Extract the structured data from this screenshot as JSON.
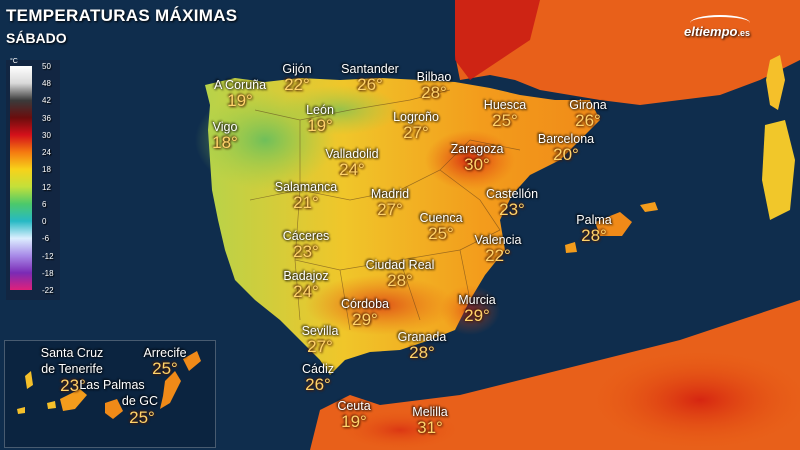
{
  "title": "TEMPERATURAS MÁXIMAS",
  "subtitle": "SÁBADO",
  "brand": "eltiempo",
  "brand_suffix": ".es",
  "legend": {
    "unit": "°C",
    "values": [
      "50",
      "48",
      "42",
      "36",
      "30",
      "24",
      "18",
      "12",
      "6",
      "0",
      "-6",
      "-12",
      "-18",
      "-22"
    ],
    "colors": [
      "#ffffff",
      "#d9d9d9",
      "#3a3a3a",
      "#6b0d0d",
      "#d4101a",
      "#f57a10",
      "#f7d21a",
      "#c4e03a",
      "#4cc96a",
      "#26b9c4",
      "#dcefff",
      "#a88be8",
      "#7a2bb5",
      "#e0207a"
    ]
  },
  "cities": [
    {
      "name": "A Coruña",
      "temp": "19°"
    },
    {
      "name": "Gijón",
      "temp": "22°"
    },
    {
      "name": "Santander",
      "temp": "26°"
    },
    {
      "name": "Bilbao",
      "temp": "28°"
    },
    {
      "name": "Vigo",
      "temp": "18°"
    },
    {
      "name": "León",
      "temp": "19°"
    },
    {
      "name": "Logroño",
      "temp": "27°"
    },
    {
      "name": "Huesca",
      "temp": "25°"
    },
    {
      "name": "Girona",
      "temp": "26°"
    },
    {
      "name": "Valladolid",
      "temp": "24°"
    },
    {
      "name": "Zaragoza",
      "temp": "30°"
    },
    {
      "name": "Barcelona",
      "temp": "20°"
    },
    {
      "name": "Salamanca",
      "temp": "21°"
    },
    {
      "name": "Madrid",
      "temp": "27°"
    },
    {
      "name": "Castellón",
      "temp": "23°"
    },
    {
      "name": "Cáceres",
      "temp": "23°"
    },
    {
      "name": "Cuenca",
      "temp": "25°"
    },
    {
      "name": "Palma",
      "temp": "28°"
    },
    {
      "name": "Valencia",
      "temp": "22°"
    },
    {
      "name": "Badajoz",
      "temp": "24°"
    },
    {
      "name": "Ciudad Real",
      "temp": "28°"
    },
    {
      "name": "Córdoba",
      "temp": "29°"
    },
    {
      "name": "Murcia",
      "temp": "29°"
    },
    {
      "name": "Sevilla",
      "temp": "27°"
    },
    {
      "name": "Granada",
      "temp": "28°"
    },
    {
      "name": "Cádiz",
      "temp": "26°"
    },
    {
      "name": "Ceuta",
      "temp": "19°"
    },
    {
      "name": "Melilla",
      "temp": "31°"
    }
  ],
  "canarias": [
    {
      "name": "Santa Cruz de Tenerife",
      "line1": "Santa Cruz",
      "line2": "de Tenerife",
      "temp": "23°"
    },
    {
      "name": "Arrecife",
      "line1": "Arrecife",
      "line2": "",
      "temp": "25°"
    },
    {
      "name": "Las Palmas de GC",
      "line1": "Las Palmas",
      "line2": "de GC",
      "temp": "25°"
    }
  ]
}
